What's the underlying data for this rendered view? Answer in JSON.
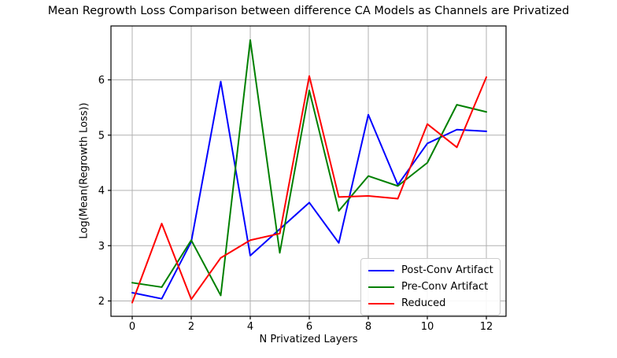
{
  "chart": {
    "title": "Mean Regrowth Loss Comparison between difference CA Models as Channels are Privatized",
    "xlabel": "N Privatized Layers",
    "ylabel": "Log(Mean(Regrowth Loss))"
  },
  "chart_data": {
    "type": "line",
    "title": "Mean Regrowth Loss Comparison between difference CA Models as Channels are Privatized",
    "xlabel": "N Privatized Layers",
    "ylabel": "Log(Mean(Regrowth Loss))",
    "x": [
      0,
      1,
      2,
      3,
      4,
      5,
      6,
      7,
      8,
      9,
      10,
      11,
      12
    ],
    "series": [
      {
        "name": "Post-Conv Artifact",
        "color": "#0000ff",
        "values": [
          2.15,
          2.04,
          3.07,
          5.97,
          2.82,
          3.3,
          3.78,
          3.05,
          5.37,
          4.1,
          4.85,
          5.1,
          5.07
        ]
      },
      {
        "name": "Pre-Conv Artifact",
        "color": "#008000",
        "values": [
          2.33,
          2.25,
          3.1,
          2.1,
          6.72,
          2.87,
          5.81,
          3.63,
          4.26,
          4.08,
          4.5,
          5.55,
          5.42
        ]
      },
      {
        "name": "Reduced",
        "color": "#ff0000",
        "values": [
          1.97,
          3.4,
          2.03,
          2.78,
          3.1,
          3.22,
          6.07,
          3.88,
          3.9,
          3.85,
          5.2,
          4.78,
          6.05
        ]
      }
    ],
    "xticks": [
      0,
      2,
      4,
      6,
      8,
      10,
      12
    ],
    "yticks": [
      2,
      3,
      4,
      5,
      6
    ],
    "xlim": [
      -0.72,
      12.67
    ],
    "ylim": [
      1.72,
      6.98
    ],
    "grid": true,
    "grid_color": "#b0b0b0",
    "spine_color": "#000000",
    "background": "#ffffff",
    "legend_position": "lower right"
  }
}
